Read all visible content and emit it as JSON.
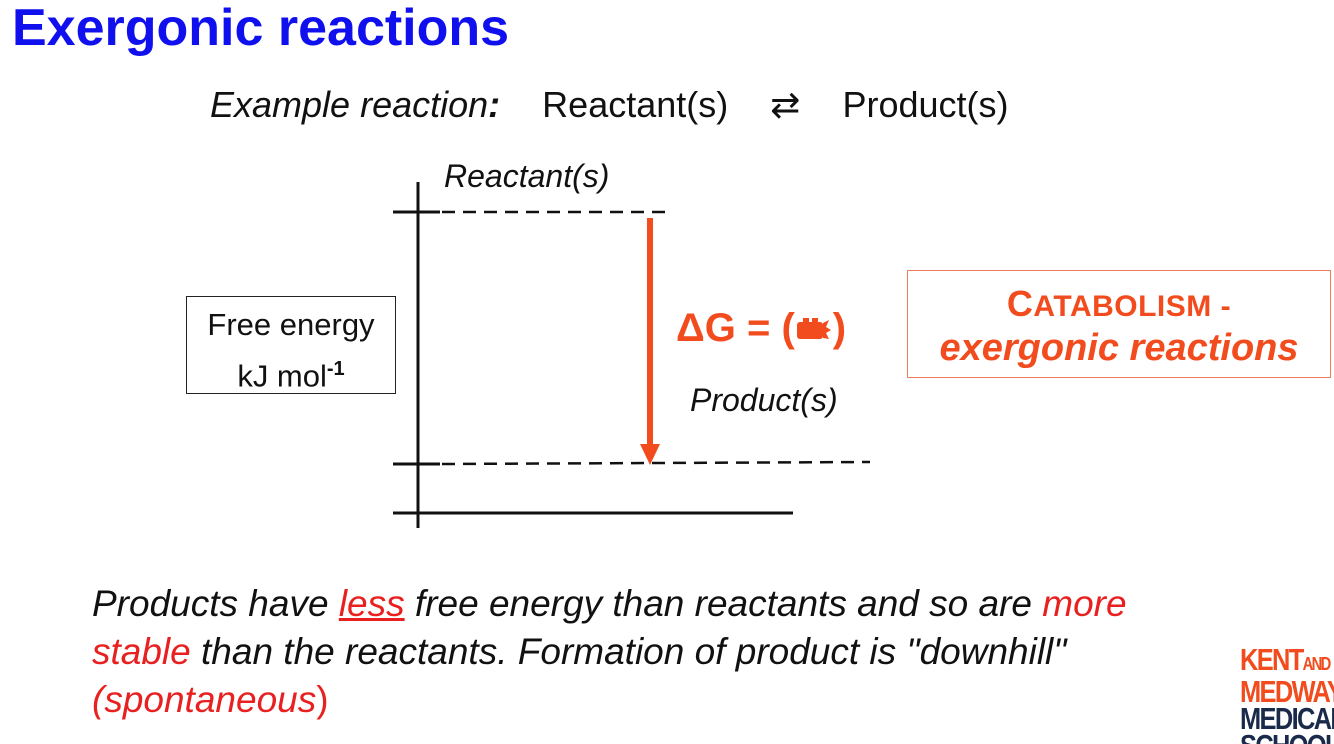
{
  "title": "Exergonic reactions",
  "example": {
    "label_prefix": "Example",
    "label_word": "reaction",
    "colon": ":",
    "reactants": "Reactant(s)",
    "equilibrium_symbol": "⇄",
    "products": "Product(s)"
  },
  "diagram": {
    "reactant_level_label": "Reactant(s)",
    "product_level_label": "Product(s)",
    "y_axis_label_line1": "Free energy",
    "y_axis_label_line2": "kJ mol",
    "y_axis_label_sup": "-1",
    "delta_g_text": "ΔG  =  (",
    "delta_g_close": ")",
    "delta_g_sign_icon": "negative-sign-icon",
    "arrow_color": "#f24b1d"
  },
  "catabolism_box": {
    "line1_first": "C",
    "line1_rest": "ATABOLISM -",
    "line2": "exergonic reactions"
  },
  "statement": {
    "part1": "Products have ",
    "less": "less",
    "part2": " free energy than reactants and so are ",
    "more_stable": "more stable",
    "part3": " than the reactants. Formation of product is \"downhill\" ",
    "spontaneous": "(spontaneous",
    "close_paren": ")"
  },
  "logo": {
    "line1": "KENT",
    "line1_small": "AND",
    "line2": "MEDWAY",
    "line3": "MEDICAL",
    "line4": "SCHOOL"
  },
  "colors": {
    "title_blue": "#1010ee",
    "accent_orange": "#f24b1d",
    "text_red": "#e8201f"
  }
}
